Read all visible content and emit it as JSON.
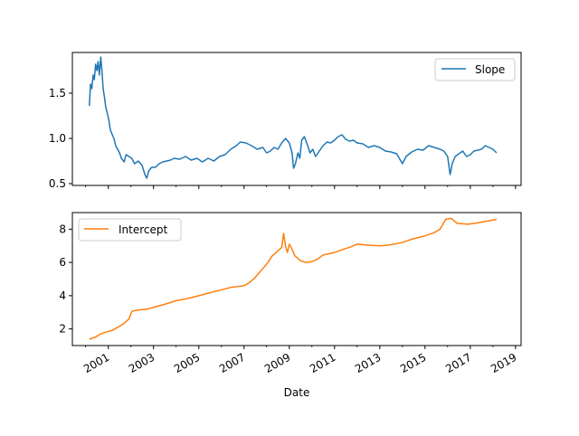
{
  "chart_data": [
    {
      "type": "line",
      "panel": "top",
      "x_type": "date",
      "ylim": [
        0.48,
        1.95
      ],
      "y_ticks": [
        0.5,
        1.0,
        1.5
      ],
      "y_tick_labels": [
        "0.5",
        "1.0",
        "1.5"
      ],
      "grid": false,
      "legend_position": "top-right",
      "series": [
        {
          "name": "Slope",
          "color": "#1f77b4",
          "points": [
            [
              "2000-03-01",
              1.36
            ],
            [
              "2000-03-20",
              1.6
            ],
            [
              "2000-04-10",
              1.55
            ],
            [
              "2000-05-01",
              1.7
            ],
            [
              "2000-05-20",
              1.65
            ],
            [
              "2000-06-10",
              1.82
            ],
            [
              "2000-07-01",
              1.75
            ],
            [
              "2000-07-20",
              1.85
            ],
            [
              "2000-08-10",
              1.7
            ],
            [
              "2000-09-01",
              1.9
            ],
            [
              "2000-09-20",
              1.75
            ],
            [
              "2000-10-10",
              1.55
            ],
            [
              "2000-11-01",
              1.45
            ],
            [
              "2000-11-20",
              1.35
            ],
            [
              "2000-12-15",
              1.28
            ],
            [
              "2001-01-10",
              1.2
            ],
            [
              "2001-02-01",
              1.1
            ],
            [
              "2001-03-01",
              1.05
            ],
            [
              "2001-04-01",
              1.0
            ],
            [
              "2001-05-01",
              0.92
            ],
            [
              "2001-06-01",
              0.88
            ],
            [
              "2001-07-01",
              0.84
            ],
            [
              "2001-08-01",
              0.78
            ],
            [
              "2001-09-15",
              0.74
            ],
            [
              "2001-10-15",
              0.82
            ],
            [
              "2001-12-01",
              0.8
            ],
            [
              "2002-01-15",
              0.78
            ],
            [
              "2002-03-01",
              0.72
            ],
            [
              "2002-05-01",
              0.75
            ],
            [
              "2002-07-01",
              0.7
            ],
            [
              "2002-08-15",
              0.6
            ],
            [
              "2002-09-15",
              0.56
            ],
            [
              "2002-10-15",
              0.64
            ],
            [
              "2002-12-01",
              0.68
            ],
            [
              "2003-02-01",
              0.68
            ],
            [
              "2003-04-01",
              0.72
            ],
            [
              "2003-06-01",
              0.74
            ],
            [
              "2003-08-01",
              0.75
            ],
            [
              "2003-10-01",
              0.76
            ],
            [
              "2003-12-01",
              0.78
            ],
            [
              "2004-03-01",
              0.77
            ],
            [
              "2004-06-01",
              0.8
            ],
            [
              "2004-09-01",
              0.76
            ],
            [
              "2004-12-01",
              0.78
            ],
            [
              "2005-03-01",
              0.74
            ],
            [
              "2005-06-01",
              0.78
            ],
            [
              "2005-09-01",
              0.75
            ],
            [
              "2005-12-01",
              0.8
            ],
            [
              "2006-03-01",
              0.82
            ],
            [
              "2006-06-01",
              0.88
            ],
            [
              "2006-09-01",
              0.92
            ],
            [
              "2006-11-01",
              0.96
            ],
            [
              "2007-02-01",
              0.95
            ],
            [
              "2007-05-01",
              0.92
            ],
            [
              "2007-08-01",
              0.88
            ],
            [
              "2007-11-01",
              0.9
            ],
            [
              "2008-01-01",
              0.84
            ],
            [
              "2008-03-01",
              0.86
            ],
            [
              "2008-05-01",
              0.9
            ],
            [
              "2008-07-01",
              0.88
            ],
            [
              "2008-09-01",
              0.95
            ],
            [
              "2008-11-01",
              1.0
            ],
            [
              "2009-01-01",
              0.95
            ],
            [
              "2009-02-15",
              0.84
            ],
            [
              "2009-03-10",
              0.67
            ],
            [
              "2009-04-10",
              0.72
            ],
            [
              "2009-05-20",
              0.84
            ],
            [
              "2009-06-20",
              0.78
            ],
            [
              "2009-07-20",
              0.98
            ],
            [
              "2009-09-01",
              1.02
            ],
            [
              "2009-10-15",
              0.94
            ],
            [
              "2009-12-01",
              0.84
            ],
            [
              "2010-01-15",
              0.88
            ],
            [
              "2010-03-01",
              0.8
            ],
            [
              "2010-05-01",
              0.86
            ],
            [
              "2010-07-01",
              0.92
            ],
            [
              "2010-09-01",
              0.96
            ],
            [
              "2010-11-01",
              0.95
            ],
            [
              "2011-01-01",
              0.98
            ],
            [
              "2011-03-01",
              1.02
            ],
            [
              "2011-05-01",
              1.04
            ],
            [
              "2011-07-01",
              0.99
            ],
            [
              "2011-09-01",
              0.97
            ],
            [
              "2011-11-01",
              0.98
            ],
            [
              "2012-01-01",
              0.95
            ],
            [
              "2012-04-01",
              0.94
            ],
            [
              "2012-07-01",
              0.9
            ],
            [
              "2012-10-01",
              0.92
            ],
            [
              "2013-01-01",
              0.9
            ],
            [
              "2013-04-01",
              0.86
            ],
            [
              "2013-07-01",
              0.85
            ],
            [
              "2013-10-01",
              0.83
            ],
            [
              "2014-01-01",
              0.72
            ],
            [
              "2014-03-01",
              0.8
            ],
            [
              "2014-06-01",
              0.85
            ],
            [
              "2014-09-01",
              0.88
            ],
            [
              "2014-12-01",
              0.87
            ],
            [
              "2015-03-01",
              0.92
            ],
            [
              "2015-06-01",
              0.9
            ],
            [
              "2015-09-01",
              0.88
            ],
            [
              "2015-11-01",
              0.86
            ],
            [
              "2016-01-01",
              0.8
            ],
            [
              "2016-02-10",
              0.6
            ],
            [
              "2016-03-15",
              0.72
            ],
            [
              "2016-05-01",
              0.8
            ],
            [
              "2016-07-01",
              0.83
            ],
            [
              "2016-09-01",
              0.86
            ],
            [
              "2016-11-01",
              0.8
            ],
            [
              "2017-01-01",
              0.82
            ],
            [
              "2017-03-01",
              0.86
            ],
            [
              "2017-05-01",
              0.87
            ],
            [
              "2017-07-01",
              0.88
            ],
            [
              "2017-09-01",
              0.92
            ],
            [
              "2017-11-01",
              0.9
            ],
            [
              "2018-01-01",
              0.88
            ],
            [
              "2018-03-01",
              0.84
            ]
          ]
        }
      ]
    },
    {
      "type": "line",
      "panel": "bottom",
      "x_type": "date",
      "ylim": [
        1.0,
        9.0
      ],
      "y_ticks": [
        2,
        4,
        6,
        8
      ],
      "y_tick_labels": [
        "2",
        "4",
        "6",
        "8"
      ],
      "xlabel": "Date",
      "x_ticks": [
        "2001-01-01",
        "2003-01-01",
        "2005-01-01",
        "2007-01-01",
        "2009-01-01",
        "2011-01-01",
        "2013-01-01",
        "2015-01-01",
        "2017-01-01",
        "2019-01-01"
      ],
      "x_tick_labels": [
        "2001",
        "2003",
        "2005",
        "2007",
        "2009",
        "2011",
        "2013",
        "2015",
        "2017",
        "2019"
      ],
      "grid": false,
      "legend_position": "top-left",
      "series": [
        {
          "name": "Intercept",
          "color": "#ff7f0e",
          "points": [
            [
              "2000-03-01",
              1.38
            ],
            [
              "2000-06-01",
              1.5
            ],
            [
              "2000-09-01",
              1.7
            ],
            [
              "2000-12-01",
              1.82
            ],
            [
              "2001-03-01",
              1.9
            ],
            [
              "2001-06-01",
              2.1
            ],
            [
              "2001-09-01",
              2.3
            ],
            [
              "2001-12-01",
              2.6
            ],
            [
              "2002-01-15",
              3.05
            ],
            [
              "2002-03-01",
              3.1
            ],
            [
              "2002-06-01",
              3.15
            ],
            [
              "2002-10-01",
              3.2
            ],
            [
              "2003-01-01",
              3.3
            ],
            [
              "2003-06-01",
              3.45
            ],
            [
              "2004-01-01",
              3.7
            ],
            [
              "2004-06-01",
              3.8
            ],
            [
              "2005-01-01",
              4.0
            ],
            [
              "2005-06-01",
              4.15
            ],
            [
              "2006-01-01",
              4.35
            ],
            [
              "2006-06-01",
              4.5
            ],
            [
              "2007-01-01",
              4.6
            ],
            [
              "2007-04-01",
              4.8
            ],
            [
              "2007-07-01",
              5.1
            ],
            [
              "2007-10-01",
              5.5
            ],
            [
              "2008-01-01",
              5.9
            ],
            [
              "2008-04-01",
              6.4
            ],
            [
              "2008-07-01",
              6.7
            ],
            [
              "2008-09-01",
              6.9
            ],
            [
              "2008-10-01",
              7.75
            ],
            [
              "2008-11-01",
              7.0
            ],
            [
              "2008-12-01",
              6.6
            ],
            [
              "2009-01-01",
              7.1
            ],
            [
              "2009-02-01",
              6.9
            ],
            [
              "2009-04-01",
              6.4
            ],
            [
              "2009-07-01",
              6.1
            ],
            [
              "2009-10-01",
              6.0
            ],
            [
              "2010-01-01",
              6.05
            ],
            [
              "2010-04-01",
              6.2
            ],
            [
              "2010-07-01",
              6.45
            ],
            [
              "2011-01-01",
              6.6
            ],
            [
              "2011-06-01",
              6.8
            ],
            [
              "2011-10-01",
              6.95
            ],
            [
              "2012-01-01",
              7.1
            ],
            [
              "2012-06-01",
              7.05
            ],
            [
              "2013-01-01",
              7.0
            ],
            [
              "2013-06-01",
              7.05
            ],
            [
              "2014-01-01",
              7.2
            ],
            [
              "2014-06-01",
              7.4
            ],
            [
              "2015-01-01",
              7.6
            ],
            [
              "2015-06-01",
              7.8
            ],
            [
              "2015-09-01",
              8.0
            ],
            [
              "2015-12-01",
              8.6
            ],
            [
              "2016-03-01",
              8.65
            ],
            [
              "2016-06-01",
              8.35
            ],
            [
              "2016-12-01",
              8.3
            ],
            [
              "2017-06-01",
              8.4
            ],
            [
              "2018-01-01",
              8.55
            ],
            [
              "2018-03-01",
              8.6
            ]
          ]
        }
      ]
    }
  ],
  "legend_labels": {
    "slope": "Slope",
    "intercept": "Intercept"
  },
  "xlabel": "Date"
}
